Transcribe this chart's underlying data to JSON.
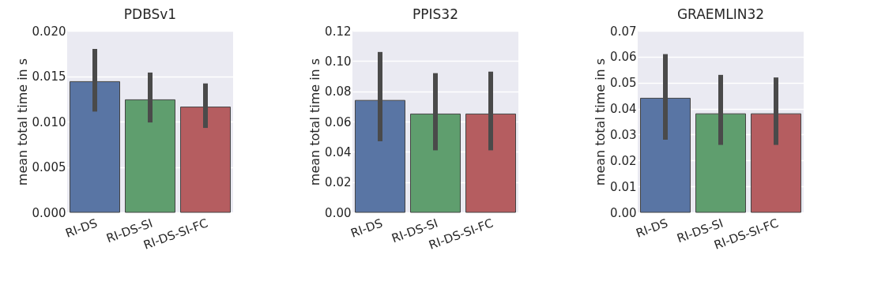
{
  "chart_data": [
    {
      "type": "bar",
      "title": "PDBSv1",
      "ylabel": "mean total time in s",
      "categories": [
        "RI-DS",
        "RI-DS-SI",
        "RI-DS-SI-FC"
      ],
      "colors": [
        "#5975a4",
        "#5f9e6e",
        "#b55d60"
      ],
      "values": [
        0.0144,
        0.0124,
        0.0116
      ],
      "errors": [
        [
          0.0111,
          0.018
        ],
        [
          0.0099,
          0.0154
        ],
        [
          0.0093,
          0.0142
        ]
      ],
      "ylim": [
        0,
        0.02
      ],
      "yticks": [
        {
          "value": 0,
          "label": "0.000"
        },
        {
          "value": 0.005,
          "label": "0.005"
        },
        {
          "value": 0.01,
          "label": "0.010"
        },
        {
          "value": 0.015,
          "label": "0.015"
        },
        {
          "value": 0.02,
          "label": "0.020"
        }
      ],
      "grid": "y"
    },
    {
      "type": "bar",
      "title": "PPIS32",
      "ylabel": "mean total time in s",
      "categories": [
        "RI-DS",
        "RI-DS-SI",
        "RI-DS-SI-FC"
      ],
      "colors": [
        "#5975a4",
        "#5f9e6e",
        "#b55d60"
      ],
      "values": [
        0.074,
        0.065,
        0.065
      ],
      "errors": [
        [
          0.047,
          0.106
        ],
        [
          0.041,
          0.092
        ],
        [
          0.041,
          0.093
        ]
      ],
      "ylim": [
        0,
        0.12
      ],
      "yticks": [
        {
          "value": 0,
          "label": "0.00"
        },
        {
          "value": 0.02,
          "label": "0.02"
        },
        {
          "value": 0.04,
          "label": "0.04"
        },
        {
          "value": 0.06,
          "label": "0.06"
        },
        {
          "value": 0.08,
          "label": "0.08"
        },
        {
          "value": 0.1,
          "label": "0.10"
        },
        {
          "value": 0.12,
          "label": "0.12"
        }
      ],
      "grid": "y"
    },
    {
      "type": "bar",
      "title": "GRAEMLIN32",
      "ylabel": "mean total time in s",
      "categories": [
        "RI-DS",
        "RI-DS-SI",
        "RI-DS-SI-FC"
      ],
      "colors": [
        "#5975a4",
        "#5f9e6e",
        "#b55d60"
      ],
      "values": [
        0.044,
        0.038,
        0.038
      ],
      "errors": [
        [
          0.028,
          0.061
        ],
        [
          0.026,
          0.053
        ],
        [
          0.026,
          0.052
        ]
      ],
      "ylim": [
        0,
        0.07
      ],
      "yticks": [
        {
          "value": 0,
          "label": "0.00"
        },
        {
          "value": 0.01,
          "label": "0.01"
        },
        {
          "value": 0.02,
          "label": "0.02"
        },
        {
          "value": 0.03,
          "label": "0.03"
        },
        {
          "value": 0.04,
          "label": "0.04"
        },
        {
          "value": 0.05,
          "label": "0.05"
        },
        {
          "value": 0.06,
          "label": "0.06"
        },
        {
          "value": 0.07,
          "label": "0.07"
        }
      ],
      "grid": "y"
    }
  ]
}
